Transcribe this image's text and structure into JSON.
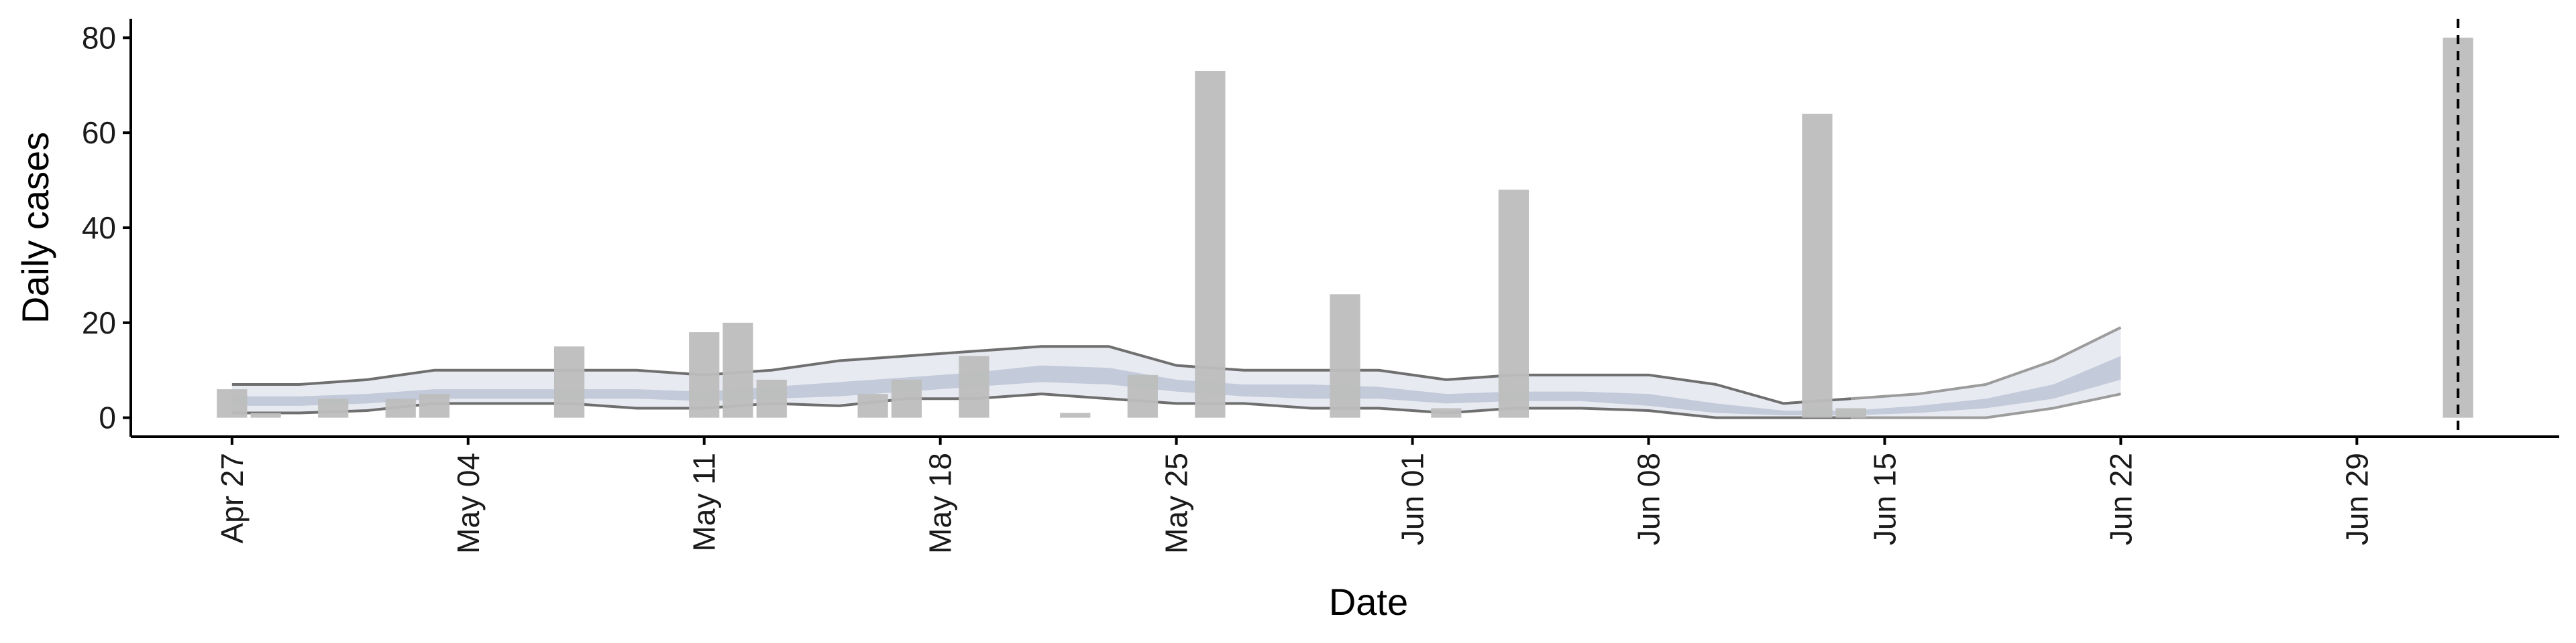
{
  "chart_data": {
    "type": "bar",
    "xlabel": "Date",
    "ylabel": "Daily cases",
    "x_axis_type": "date",
    "ylim": [
      -4,
      84
    ],
    "xlim": [
      "2020-04-24",
      "2020-07-05"
    ],
    "y_ticks": [
      0,
      20,
      40,
      60,
      80
    ],
    "x_ticks": [
      {
        "date": "2020-04-27",
        "label": "Apr 27"
      },
      {
        "date": "2020-05-04",
        "label": "May 04"
      },
      {
        "date": "2020-05-11",
        "label": "May 11"
      },
      {
        "date": "2020-05-18",
        "label": "May 18"
      },
      {
        "date": "2020-05-25",
        "label": "May 25"
      },
      {
        "date": "2020-06-01",
        "label": "Jun 01"
      },
      {
        "date": "2020-06-08",
        "label": "Jun 08"
      },
      {
        "date": "2020-06-15",
        "label": "Jun 15"
      },
      {
        "date": "2020-06-22",
        "label": "Jun 22"
      },
      {
        "date": "2020-06-29",
        "label": "Jun 29"
      }
    ],
    "grid": false,
    "legend": "none",
    "colors": {
      "bars": "#bdbdbd",
      "band_outer": "#e8eaf1",
      "band_inner": "#c3cad9",
      "bound_lines": "#6f6f6f",
      "forecast_lines": "#9c9c9c",
      "axis": "#000000"
    },
    "bars": [
      {
        "date": "2020-04-27",
        "value": 6
      },
      {
        "date": "2020-04-28",
        "value": 1
      },
      {
        "date": "2020-04-30",
        "value": 4
      },
      {
        "date": "2020-05-02",
        "value": 4
      },
      {
        "date": "2020-05-03",
        "value": 5
      },
      {
        "date": "2020-05-07",
        "value": 15
      },
      {
        "date": "2020-05-11",
        "value": 18
      },
      {
        "date": "2020-05-12",
        "value": 20
      },
      {
        "date": "2020-05-13",
        "value": 8
      },
      {
        "date": "2020-05-16",
        "value": 5
      },
      {
        "date": "2020-05-17",
        "value": 8
      },
      {
        "date": "2020-05-19",
        "value": 13
      },
      {
        "date": "2020-05-22",
        "value": 1
      },
      {
        "date": "2020-05-24",
        "value": 9
      },
      {
        "date": "2020-05-26",
        "value": 73
      },
      {
        "date": "2020-05-30",
        "value": 26
      },
      {
        "date": "2020-06-02",
        "value": 2
      },
      {
        "date": "2020-06-04",
        "value": 48
      },
      {
        "date": "2020-06-13",
        "value": 64
      },
      {
        "date": "2020-06-14",
        "value": 2
      },
      {
        "date": "2020-07-02",
        "value": 80
      }
    ],
    "band_dates": [
      "2020-04-27",
      "2020-04-29",
      "2020-05-01",
      "2020-05-03",
      "2020-05-05",
      "2020-05-07",
      "2020-05-09",
      "2020-05-11",
      "2020-05-13",
      "2020-05-15",
      "2020-05-17",
      "2020-05-19",
      "2020-05-21",
      "2020-05-23",
      "2020-05-25",
      "2020-05-27",
      "2020-05-29",
      "2020-05-31",
      "2020-06-02",
      "2020-06-04",
      "2020-06-06",
      "2020-06-08",
      "2020-06-10",
      "2020-06-12",
      "2020-06-14",
      "2020-06-16",
      "2020-06-18",
      "2020-06-20",
      "2020-06-22"
    ],
    "upper_bound": [
      7,
      7,
      8,
      10,
      10,
      10,
      10,
      9,
      10,
      12,
      13,
      14,
      15,
      15,
      11,
      10,
      10,
      10,
      8,
      9,
      9,
      9,
      7,
      3,
      4,
      5,
      7,
      12,
      19
    ],
    "lower_bound": [
      1,
      1,
      1.5,
      3,
      3,
      3,
      2,
      2,
      3,
      2.5,
      4,
      4,
      5,
      4,
      3,
      3,
      2,
      2,
      1,
      2,
      2,
      1.5,
      0,
      0,
      0,
      0,
      0,
      2,
      5
    ],
    "inner_upper": [
      4.5,
      4.5,
      5,
      6,
      6,
      6,
      6,
      5.5,
      6.5,
      7.5,
      8.5,
      9.5,
      11,
      10.5,
      8,
      7,
      7,
      6.5,
      5,
      5.5,
      5.5,
      5,
      3,
      1.5,
      1.5,
      2.5,
      4,
      7,
      13
    ],
    "inner_lower": [
      2.5,
      2.5,
      3,
      4,
      4,
      4,
      4,
      3.5,
      4,
      4.5,
      5.5,
      6.5,
      7.5,
      7,
      5.5,
      4.5,
      4,
      4,
      3,
      3.5,
      3.5,
      2.5,
      1,
      0.5,
      0.5,
      1,
      2,
      4,
      8
    ],
    "forecast_start": "2020-06-14",
    "vline_date": "2020-07-02"
  }
}
